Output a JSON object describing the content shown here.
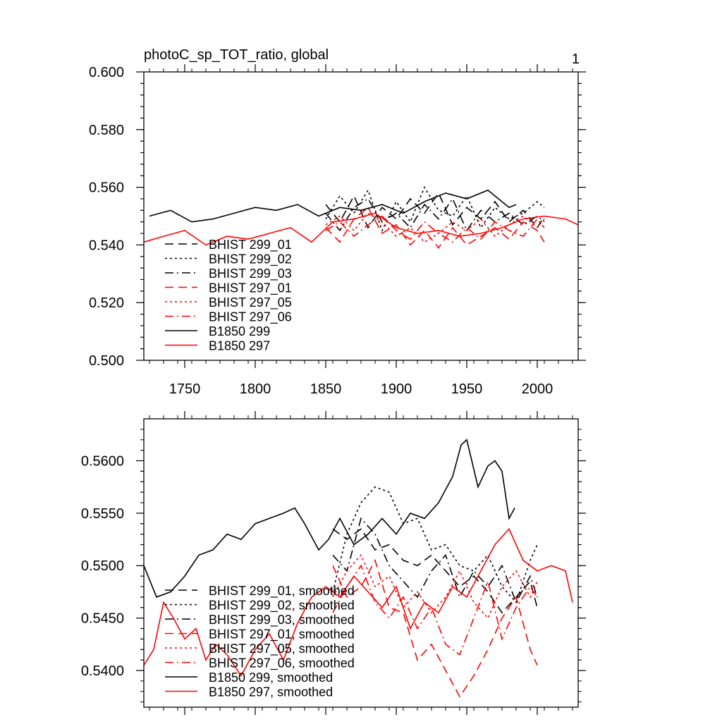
{
  "figure": {
    "corner_label": "1"
  },
  "colors": {
    "black": "#000000",
    "red": "#ff0000"
  },
  "chart_data": [
    {
      "type": "line",
      "title": "photoC_sp_TOT_ratio, global",
      "xlabel": "",
      "ylabel": "",
      "xlim": [
        1721,
        2029
      ],
      "ylim": [
        0.5,
        0.6
      ],
      "x_ticks": [
        1750,
        1800,
        1850,
        1900,
        1950,
        2000
      ],
      "x_tick_labels": [
        "1750",
        "1800",
        "1850",
        "1900",
        "1950",
        "2000"
      ],
      "y_ticks": [
        0.5,
        0.52,
        0.54,
        0.56,
        0.58,
        0.6
      ],
      "y_tick_labels": [
        "0.500",
        "0.520",
        "0.540",
        "0.560",
        "0.580",
        "0.600"
      ],
      "legend_position": "bottom-left",
      "series": [
        {
          "name": "BHIST 299_01",
          "color": "#000000",
          "dash": "dashed",
          "x": [
            1850,
            1860,
            1870,
            1880,
            1890,
            1900,
            1910,
            1920,
            1930,
            1940,
            1950,
            1960,
            1970,
            1980,
            1990,
            2000,
            2005
          ],
          "values": [
            0.554,
            0.548,
            0.557,
            0.546,
            0.553,
            0.549,
            0.556,
            0.551,
            0.558,
            0.547,
            0.553,
            0.549,
            0.555,
            0.548,
            0.552,
            0.546,
            0.55
          ]
        },
        {
          "name": "BHIST 299_02",
          "color": "#000000",
          "dash": "dotted",
          "x": [
            1850,
            1860,
            1870,
            1880,
            1890,
            1900,
            1910,
            1920,
            1930,
            1940,
            1950,
            1960,
            1970,
            1980,
            1990,
            2000,
            2005
          ],
          "values": [
            0.549,
            0.557,
            0.551,
            0.559,
            0.545,
            0.555,
            0.548,
            0.56,
            0.552,
            0.55,
            0.557,
            0.546,
            0.553,
            0.549,
            0.551,
            0.555,
            0.553
          ]
        },
        {
          "name": "BHIST 299_03",
          "color": "#000000",
          "dash": "dashdot",
          "x": [
            1850,
            1860,
            1870,
            1880,
            1890,
            1900,
            1910,
            1920,
            1930,
            1940,
            1950,
            1960,
            1970,
            1980,
            1990,
            2000,
            2005
          ],
          "values": [
            0.551,
            0.545,
            0.553,
            0.556,
            0.548,
            0.551,
            0.546,
            0.554,
            0.549,
            0.556,
            0.545,
            0.552,
            0.548,
            0.551,
            0.547,
            0.55,
            0.548
          ]
        },
        {
          "name": "BHIST 297_01",
          "color": "#ff0000",
          "dash": "dashed",
          "x": [
            1850,
            1860,
            1870,
            1880,
            1890,
            1900,
            1910,
            1920,
            1930,
            1940,
            1950,
            1960,
            1970,
            1980,
            1990,
            2000,
            2005
          ],
          "values": [
            0.546,
            0.541,
            0.549,
            0.553,
            0.544,
            0.547,
            0.54,
            0.545,
            0.539,
            0.546,
            0.54,
            0.543,
            0.546,
            0.542,
            0.548,
            0.545,
            0.541
          ]
        },
        {
          "name": "BHIST 297_05",
          "color": "#ff0000",
          "dash": "dotted",
          "x": [
            1850,
            1860,
            1870,
            1880,
            1890,
            1900,
            1910,
            1920,
            1930,
            1940,
            1950,
            1960,
            1970,
            1980,
            1990,
            2000,
            2005
          ],
          "values": [
            0.547,
            0.55,
            0.545,
            0.551,
            0.548,
            0.543,
            0.546,
            0.541,
            0.544,
            0.548,
            0.545,
            0.549,
            0.543,
            0.547,
            0.55,
            0.546,
            0.549
          ]
        },
        {
          "name": "BHIST 297_06",
          "color": "#ff0000",
          "dash": "dashdot",
          "x": [
            1850,
            1860,
            1870,
            1880,
            1890,
            1900,
            1910,
            1920,
            1930,
            1940,
            1950,
            1960,
            1970,
            1980,
            1990,
            2000,
            2005
          ],
          "values": [
            0.545,
            0.548,
            0.543,
            0.547,
            0.55,
            0.545,
            0.542,
            0.548,
            0.544,
            0.541,
            0.546,
            0.542,
            0.548,
            0.545,
            0.543,
            0.549,
            0.546
          ]
        },
        {
          "name": "B1850 299",
          "color": "#000000",
          "dash": "solid",
          "x": [
            1725,
            1740,
            1755,
            1770,
            1785,
            1800,
            1815,
            1830,
            1845,
            1860,
            1875,
            1890,
            1905,
            1920,
            1935,
            1950,
            1965,
            1980,
            1985
          ],
          "values": [
            0.55,
            0.552,
            0.548,
            0.549,
            0.551,
            0.553,
            0.552,
            0.554,
            0.55,
            0.553,
            0.552,
            0.554,
            0.551,
            0.555,
            0.558,
            0.556,
            0.559,
            0.553,
            0.554
          ]
        },
        {
          "name": "B1850 297",
          "color": "#ff0000",
          "dash": "solid",
          "x": [
            1721,
            1735,
            1750,
            1765,
            1780,
            1795,
            1810,
            1825,
            1840,
            1855,
            1870,
            1885,
            1900,
            1915,
            1930,
            1945,
            1960,
            1975,
            1990,
            2005,
            2020,
            2029
          ],
          "values": [
            0.541,
            0.543,
            0.545,
            0.54,
            0.543,
            0.542,
            0.544,
            0.546,
            0.541,
            0.548,
            0.549,
            0.551,
            0.546,
            0.544,
            0.545,
            0.543,
            0.544,
            0.546,
            0.549,
            0.55,
            0.549,
            0.547
          ]
        }
      ]
    },
    {
      "type": "line",
      "title": "",
      "xlabel": "",
      "ylabel": "",
      "xlim": [
        1721,
        2029
      ],
      "ylim": [
        0.5365,
        0.564
      ],
      "x_ticks": [
        1750,
        1800,
        1850,
        1900,
        1950,
        2000
      ],
      "x_tick_labels": [],
      "y_ticks": [
        0.54,
        0.545,
        0.55,
        0.555,
        0.56
      ],
      "y_tick_labels": [
        "0.5400",
        "0.5450",
        "0.5500",
        "0.5550",
        "0.5600"
      ],
      "legend_position": "bottom-left",
      "series": [
        {
          "name": "BHIST 299_01, smoothed",
          "color": "#000000",
          "dash": "dashed",
          "x": [
            1855,
            1865,
            1875,
            1885,
            1895,
            1905,
            1915,
            1925,
            1935,
            1945,
            1955,
            1965,
            1975,
            1985,
            1995,
            2000
          ],
          "values": [
            0.5535,
            0.5525,
            0.5535,
            0.5515,
            0.552,
            0.5505,
            0.55,
            0.551,
            0.5495,
            0.548,
            0.549,
            0.5475,
            0.5455,
            0.547,
            0.5485,
            0.546
          ]
        },
        {
          "name": "BHIST 299_02, smoothed",
          "color": "#000000",
          "dash": "dotted",
          "x": [
            1855,
            1865,
            1875,
            1885,
            1895,
            1905,
            1915,
            1925,
            1935,
            1945,
            1955,
            1965,
            1975,
            1985,
            1995,
            2000
          ],
          "values": [
            0.5475,
            0.553,
            0.556,
            0.5575,
            0.557,
            0.554,
            0.5545,
            0.5515,
            0.552,
            0.55,
            0.5495,
            0.551,
            0.548,
            0.5465,
            0.5505,
            0.552
          ]
        },
        {
          "name": "BHIST 299_03, smoothed",
          "color": "#000000",
          "dash": "dashdot",
          "x": [
            1855,
            1865,
            1875,
            1885,
            1895,
            1905,
            1915,
            1925,
            1935,
            1945,
            1955,
            1965,
            1975,
            1985,
            1995,
            2000
          ],
          "values": [
            0.551,
            0.5495,
            0.5545,
            0.553,
            0.55,
            0.5485,
            0.547,
            0.5495,
            0.551,
            0.547,
            0.5495,
            0.548,
            0.55,
            0.5465,
            0.549,
            0.547
          ]
        },
        {
          "name": "BHIST 297_01, smoothed",
          "color": "#ff0000",
          "dash": "dashed",
          "x": [
            1855,
            1865,
            1875,
            1885,
            1895,
            1905,
            1915,
            1925,
            1935,
            1945,
            1955,
            1965,
            1975,
            1985,
            1995,
            2000
          ],
          "values": [
            0.55,
            0.547,
            0.548,
            0.5505,
            0.546,
            0.5455,
            0.541,
            0.5425,
            0.54,
            0.5375,
            0.5395,
            0.542,
            0.545,
            0.547,
            0.542,
            0.5405
          ]
        },
        {
          "name": "BHIST 297_05, smoothed",
          "color": "#ff0000",
          "dash": "dotted",
          "x": [
            1855,
            1865,
            1875,
            1885,
            1895,
            1905,
            1915,
            1925,
            1935,
            1945,
            1955,
            1965,
            1975,
            1985,
            1995,
            2000
          ],
          "values": [
            0.547,
            0.5495,
            0.551,
            0.548,
            0.549,
            0.546,
            0.5475,
            0.5455,
            0.547,
            0.5495,
            0.5465,
            0.545,
            0.548,
            0.5495,
            0.547,
            0.5485
          ]
        },
        {
          "name": "BHIST 297_06, smoothed",
          "color": "#ff0000",
          "dash": "dashdot",
          "x": [
            1855,
            1865,
            1875,
            1885,
            1895,
            1905,
            1915,
            1925,
            1935,
            1945,
            1955,
            1965,
            1975,
            1985,
            1995,
            2000
          ],
          "values": [
            0.5455,
            0.548,
            0.55,
            0.5465,
            0.545,
            0.547,
            0.544,
            0.546,
            0.5425,
            0.5415,
            0.545,
            0.5485,
            0.543,
            0.546,
            0.548,
            0.547
          ]
        },
        {
          "name": "B1850 299, smoothed",
          "color": "#000000",
          "dash": "solid",
          "x": [
            1721,
            1730,
            1740,
            1750,
            1760,
            1770,
            1780,
            1790,
            1800,
            1810,
            1820,
            1828,
            1835,
            1845,
            1852,
            1860,
            1870,
            1880,
            1890,
            1900,
            1910,
            1920,
            1930,
            1940,
            1946,
            1950,
            1958,
            1965,
            1970,
            1975,
            1980,
            1984
          ],
          "values": [
            0.55,
            0.547,
            0.5475,
            0.549,
            0.551,
            0.5515,
            0.553,
            0.5525,
            0.554,
            0.5545,
            0.555,
            0.5555,
            0.554,
            0.5515,
            0.5525,
            0.5545,
            0.552,
            0.553,
            0.5545,
            0.553,
            0.555,
            0.5545,
            0.556,
            0.5585,
            0.5615,
            0.562,
            0.5575,
            0.5595,
            0.56,
            0.559,
            0.5545,
            0.5555
          ]
        },
        {
          "name": "B1850 297, smoothed",
          "color": "#ff0000",
          "dash": "solid",
          "x": [
            1721,
            1728,
            1735,
            1742,
            1750,
            1758,
            1765,
            1772,
            1780,
            1790,
            1800,
            1810,
            1820,
            1830,
            1840,
            1850,
            1860,
            1870,
            1880,
            1890,
            1900,
            1910,
            1920,
            1930,
            1940,
            1950,
            1960,
            1970,
            1980,
            1990,
            2000,
            2010,
            2020,
            2025
          ],
          "values": [
            0.5405,
            0.542,
            0.5465,
            0.545,
            0.543,
            0.544,
            0.541,
            0.5425,
            0.5415,
            0.5395,
            0.542,
            0.5435,
            0.541,
            0.5445,
            0.547,
            0.548,
            0.547,
            0.549,
            0.5475,
            0.546,
            0.548,
            0.544,
            0.5465,
            0.5455,
            0.548,
            0.547,
            0.5495,
            0.552,
            0.5535,
            0.5505,
            0.5495,
            0.55,
            0.5495,
            0.5465
          ]
        }
      ]
    }
  ]
}
